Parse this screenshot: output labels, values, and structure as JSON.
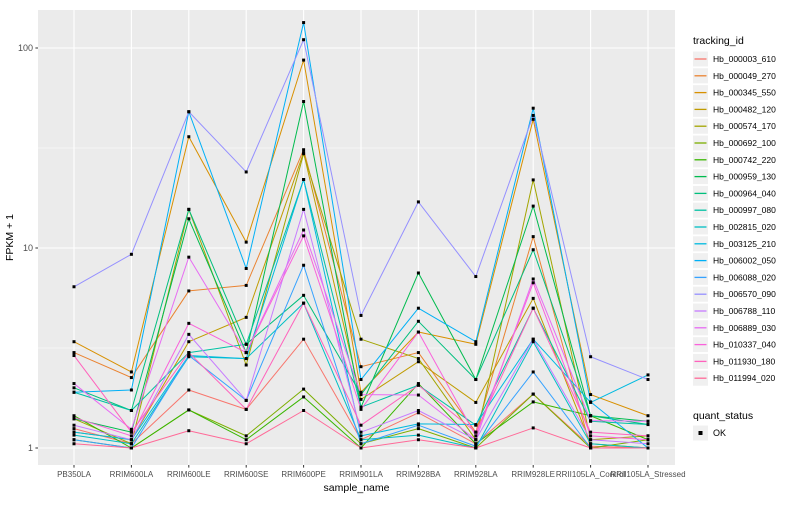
{
  "chart_data": {
    "type": "line",
    "title": "",
    "xlabel": "sample_name",
    "ylabel": "FPKM + 1",
    "y_scale": "log10",
    "y_ticks": [
      1,
      10,
      100
    ],
    "y_tick_labels": [
      "1",
      "10",
      "100"
    ],
    "ylim": [
      0.82,
      155
    ],
    "grid": true,
    "panel_bg": "#EBEBEB",
    "grid_color": "#FFFFFF",
    "tick_label_color": "#4D4D4D",
    "axis_title_color": "#000000",
    "legend_position": "right",
    "legend_title": "tracking_id",
    "legend_key_bg": "#F0F0F0",
    "point_marker": "square",
    "point_color": "#000000",
    "legend2_title": "quant_status",
    "legend2_items": [
      {
        "label": "OK",
        "marker": "square",
        "color": "#000000"
      }
    ],
    "categories": [
      "PB350LA",
      "RRIM600LA",
      "RRIM600LE",
      "RRIM600SE",
      "RRIM600PE",
      "RRIM901LA",
      "RRIM928BA",
      "RRIM928LA",
      "RRIM928LE",
      "RRII105LA_Control",
      "RRII105LA_Stressed"
    ],
    "series": [
      {
        "name": "Hb_000003_610",
        "color": "#F8766D",
        "values": [
          1.25,
          1.05,
          1.95,
          1.56,
          3.5,
          1.1,
          1.5,
          1.05,
          1.86,
          1.02,
          1.0
        ]
      },
      {
        "name": "Hb_000049_270",
        "color": "#EA8331",
        "values": [
          3.0,
          2.25,
          6.1,
          6.5,
          31,
          2.55,
          3.0,
          1.2,
          11.4,
          1.0,
          1.0
        ]
      },
      {
        "name": "Hb_000345_550",
        "color": "#D89000",
        "values": [
          3.4,
          2.4,
          36,
          10.7,
          87,
          1.9,
          3.8,
          3.3,
          44,
          1.85,
          1.45
        ]
      },
      {
        "name": "Hb_000482_120",
        "color": "#C09B00",
        "values": [
          1.2,
          1.1,
          3.4,
          4.5,
          30,
          1.75,
          2.7,
          1.69,
          5.6,
          1.05,
          1.0
        ]
      },
      {
        "name": "Hb_000574_170",
        "color": "#A3A500",
        "values": [
          1.4,
          1.05,
          15.6,
          2.6,
          29.6,
          3.5,
          2.8,
          1.1,
          21.9,
          1.1,
          1.15
        ]
      },
      {
        "name": "Hb_000692_100",
        "color": "#7CAE00",
        "values": [
          1.1,
          1.0,
          1.55,
          1.15,
          1.97,
          1.05,
          1.25,
          1.0,
          1.86,
          1.0,
          1.1
        ]
      },
      {
        "name": "Hb_000742_220",
        "color": "#39B600",
        "values": [
          1.45,
          1.0,
          1.55,
          1.1,
          1.8,
          1.0,
          2.1,
          1.05,
          1.7,
          1.45,
          1.1
        ]
      },
      {
        "name": "Hb_000959_130",
        "color": "#00BB4E",
        "values": [
          1.4,
          1.2,
          14,
          3.0,
          54,
          1.6,
          7.5,
          2.2,
          16.2,
          1.45,
          1.36
        ]
      },
      {
        "name": "Hb_000964_040",
        "color": "#00BF7D",
        "values": [
          2.0,
          1.54,
          15.6,
          3.3,
          5.8,
          1.85,
          4.3,
          2.2,
          9.8,
          1.45,
          1.31
        ]
      },
      {
        "name": "Hb_000997_080",
        "color": "#00C1A3",
        "values": [
          1.9,
          1.54,
          3.0,
          3.3,
          22,
          1.6,
          2.06,
          1.3,
          5.0,
          1.36,
          1.31
        ]
      },
      {
        "name": "Hb_002815_020",
        "color": "#00BFC4",
        "values": [
          1.16,
          1.05,
          2.86,
          2.8,
          5.3,
          1.1,
          1.16,
          1.0,
          3.4,
          1.05,
          1.0
        ]
      },
      {
        "name": "Hb_003125_210",
        "color": "#00BAE0",
        "values": [
          1.2,
          1.1,
          2.9,
          2.8,
          22,
          1.15,
          1.32,
          1.31,
          3.5,
          1.69,
          2.32
        ]
      },
      {
        "name": "Hb_006002_050",
        "color": "#00B0F6",
        "values": [
          1.9,
          1.95,
          48,
          7.9,
          134,
          2.2,
          5.0,
          3.4,
          50,
          1.7,
          1.0
        ]
      },
      {
        "name": "Hb_006088_020",
        "color": "#35A2FF",
        "values": [
          1.1,
          1.0,
          2.9,
          1.73,
          8.2,
          1.05,
          1.3,
          1.02,
          2.4,
          1.0,
          1.0
        ]
      },
      {
        "name": "Hb_006570_090",
        "color": "#9590FF",
        "values": [
          6.4,
          9.3,
          48,
          24,
          110,
          4.6,
          17,
          7.2,
          46,
          2.86,
          2.2
        ]
      },
      {
        "name": "Hb_006788_110",
        "color": "#C77CFF",
        "values": [
          1.3,
          1.1,
          3.7,
          1.73,
          15.6,
          1.2,
          1.54,
          1.1,
          3.5,
          1.1,
          1.05
        ]
      },
      {
        "name": "Hb_006889_030",
        "color": "#E76BF3",
        "values": [
          2.1,
          1.24,
          9.0,
          3.0,
          12.3,
          1.85,
          1.84,
          1.1,
          7.0,
          1.37,
          1.36
        ]
      },
      {
        "name": "Hb_010337_040",
        "color": "#FA62DB",
        "values": [
          1.42,
          1.15,
          4.2,
          3.0,
          11.5,
          1.56,
          3.8,
          1.15,
          6.7,
          1.15,
          1.1
        ]
      },
      {
        "name": "Hb_011930_180",
        "color": "#FF62BC",
        "values": [
          2.9,
          1.2,
          3.0,
          1.56,
          5.3,
          1.3,
          2.06,
          1.2,
          5.0,
          1.2,
          1.15
        ]
      },
      {
        "name": "Hb_011994_020",
        "color": "#FF6A98",
        "values": [
          1.05,
          1.0,
          1.22,
          1.05,
          1.54,
          1.0,
          1.1,
          1.0,
          1.26,
          1.0,
          1.0
        ]
      }
    ]
  }
}
